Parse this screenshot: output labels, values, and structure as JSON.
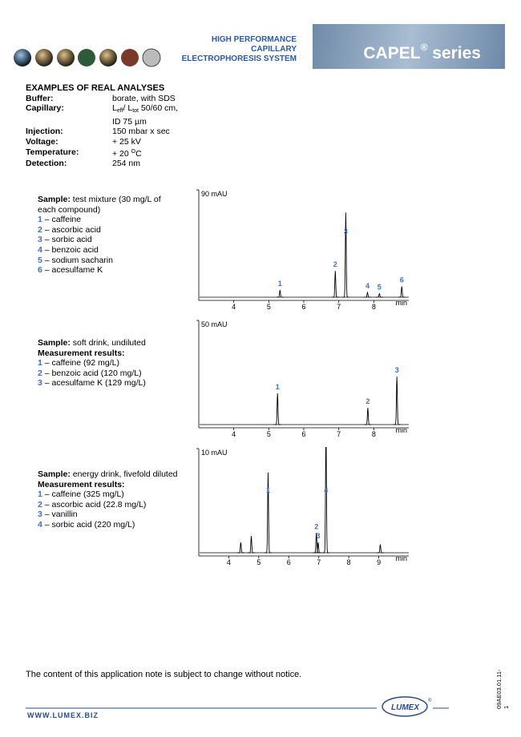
{
  "header": {
    "title_lines": [
      "HIGH PERFORMANCE",
      "CAPILLARY",
      "ELECTROPHORESIS SYSTEM"
    ],
    "brand": "CAPEL",
    "brand_mark": "®",
    "brand_suffix": "series"
  },
  "conditions": {
    "heading": "EXAMPLES OF REAL ANALYSES",
    "buffer": {
      "label": "Buffer:",
      "value": "borate, with SDS"
    },
    "capillary": {
      "label": "Capillary:",
      "parts": [
        "L",
        "eff",
        "/ L",
        "tot",
        " 50/60 cm,"
      ],
      "line2": "ID  75 µm"
    },
    "injection": {
      "label": "Injection:",
      "value": "150 mbar x sec"
    },
    "voltage": {
      "label": "Voltage:",
      "value": "+ 25 kV"
    },
    "temperature": {
      "label": "Temperature:",
      "parts": [
        "+ 20 ",
        "O",
        "C"
      ]
    },
    "detection": {
      "label": "Detection:",
      "value": "254 nm"
    }
  },
  "panels": [
    {
      "sample": {
        "label": "Sample:",
        "text": " test mixture (30 mg/L of each compound)"
      },
      "items": [
        {
          "num": "1",
          "text": " – caffeine"
        },
        {
          "num": "2",
          "text": " – ascorbic acid"
        },
        {
          "num": "3",
          "text": " – sorbic acid"
        },
        {
          "num": "4",
          "text": " – benzoic acid"
        },
        {
          "num": "5",
          "text": " – sodium sacharin"
        },
        {
          "num": "6",
          "text": " – acesulfame K"
        }
      ],
      "chart": {
        "type": "line",
        "xlim": [
          3.0,
          9.0
        ],
        "xticks": [
          4,
          5,
          6,
          7,
          8
        ],
        "x_unit": "min",
        "ylim": [
          0,
          90
        ],
        "yticks": [
          {
            "value": 90,
            "label": "90 mAU"
          }
        ],
        "color": "#000000",
        "label_color": "#3a6fd0",
        "peaks": [
          {
            "label": "1",
            "x": 5.32,
            "height": 6
          },
          {
            "label": "2",
            "x": 6.9,
            "height": 22
          },
          {
            "label": "3",
            "x": 7.2,
            "height": 71
          },
          {
            "label": "4",
            "x": 7.82,
            "height": 4
          },
          {
            "label": "5",
            "x": 8.16,
            "height": 3
          },
          {
            "label": "6",
            "x": 8.8,
            "height": 9
          }
        ]
      }
    },
    {
      "sample": {
        "label": "Sample:",
        "text": " soft drink, undiluted"
      },
      "results_heading": "Measurement results:",
      "items": [
        {
          "num": "1",
          "text": " – caffeine (92 mg/L)"
        },
        {
          "num": "2",
          "text": " – benzoic acid (120 mg/L)"
        },
        {
          "num": "3",
          "text": " – acesulfame K (129 mg/L)"
        }
      ],
      "chart": {
        "type": "line",
        "xlim": [
          3.0,
          9.0
        ],
        "xticks": [
          4,
          5,
          6,
          7,
          8
        ],
        "x_unit": "min",
        "ylim": [
          0,
          50
        ],
        "yticks": [
          {
            "value": 50,
            "label": "50 mAU"
          }
        ],
        "color": "#000000",
        "label_color": "#3a6fd0",
        "peaks": [
          {
            "label": "1",
            "x": 5.25,
            "height": 15
          },
          {
            "label": "2",
            "x": 7.83,
            "height": 8
          },
          {
            "label": "3",
            "x": 8.66,
            "height": 23
          }
        ]
      }
    },
    {
      "sample": {
        "label": "Sample:",
        "text": " energy drink, fivefold diluted"
      },
      "results_heading": "Measurement results:",
      "items": [
        {
          "num": "1",
          "text": " – caffeine (325 mg/L)"
        },
        {
          "num": "2",
          "text": " – ascorbic acid (22.8 mg/L)"
        },
        {
          "num": "3",
          "text": " – vanillin"
        },
        {
          "num": "4",
          "text": " – sorbic acid (220 mg/L)"
        }
      ],
      "chart": {
        "type": "line",
        "xlim": [
          3.0,
          10.0
        ],
        "xticks": [
          4,
          5,
          6,
          7,
          8,
          9
        ],
        "x_unit": "min",
        "ylim": [
          0,
          10
        ],
        "yticks": [
          {
            "value": 10,
            "label": "10 mAU"
          }
        ],
        "color": "#000000",
        "label_color": "#3a6fd0",
        "peaks": [
          {
            "label": null,
            "x": 4.4,
            "height": 1.0
          },
          {
            "label": null,
            "x": 4.75,
            "height": 1.6
          },
          {
            "label": "1",
            "x": 5.31,
            "height": 7.7
          },
          {
            "label": "2",
            "x": 6.92,
            "height": 1.9
          },
          {
            "label": "3",
            "x": 6.98,
            "height": 1.0
          },
          {
            "label": "4",
            "x": 7.24,
            "height": 12
          },
          {
            "label": null,
            "x": 9.05,
            "height": 0.8
          }
        ]
      }
    }
  ],
  "footer": {
    "note": "The content of this application note is subject to change without notice.",
    "website": "WWW.LUMEX.BIZ",
    "logo": "LUMEX",
    "logo_mark": "®",
    "doc_code": "09AE03.01.11-1"
  }
}
